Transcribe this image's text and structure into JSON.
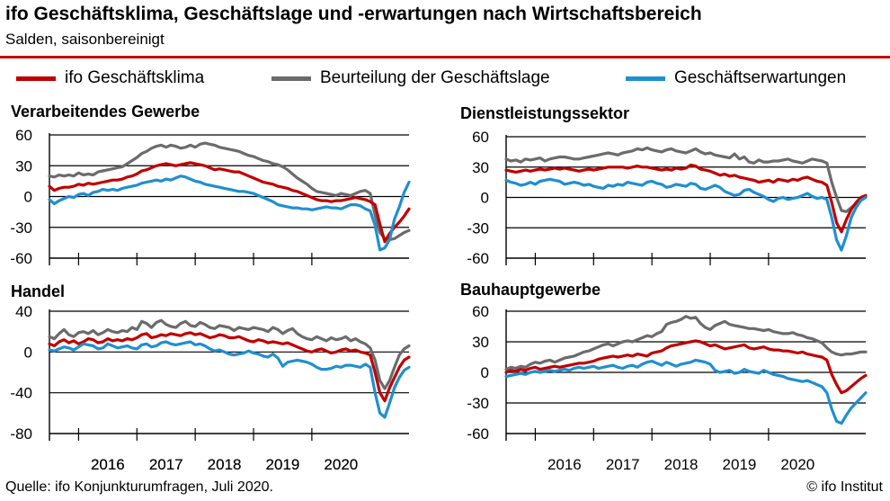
{
  "header": {
    "title": "ifo Geschäftsklima, Geschäftslage und -erwartungen nach Wirtschaftsbereich",
    "subtitle": "Salden, saisonbereinigt"
  },
  "legend": [
    {
      "label": "ifo Geschäftsklima",
      "color": "#c00000"
    },
    {
      "label": "Beurteilung der Geschäftslage",
      "color": "#6b6b6b"
    },
    {
      "label": "Geschäftserwartungen",
      "color": "#1f8fd0"
    }
  ],
  "footer": {
    "source": "Quelle:  ifo Konjunkturumfragen,  Juli 2020.",
    "copyright": "© ifo Institut"
  },
  "chart_data": [
    {
      "type": "line",
      "title": "Verarbeitendes Gewerbe",
      "ylim": [
        -60,
        60
      ],
      "yticks": [
        "60",
        "30",
        "0",
        "-30",
        "-60"
      ],
      "xtick_labels": [
        "2016",
        "2017",
        "2018",
        "2019",
        "2020"
      ],
      "x_start": "2015-07",
      "x_end": "2020-07",
      "series": [
        {
          "name": "ifo Geschäftsklima",
          "color": "#c00000",
          "values": [
            10,
            6,
            8,
            9,
            9,
            10,
            12,
            11,
            13,
            12,
            13,
            14,
            15,
            16,
            16,
            17,
            19,
            20,
            22,
            25,
            26,
            28,
            30,
            31,
            32,
            31,
            30,
            31,
            32,
            33,
            32,
            31,
            30,
            28,
            26,
            27,
            26,
            25,
            24,
            24,
            22,
            20,
            18,
            16,
            14,
            13,
            12,
            10,
            9,
            8,
            6,
            5,
            3,
            1,
            -1,
            -3,
            -4,
            -4,
            -5,
            -4,
            -4,
            -3,
            -2,
            -1,
            -2,
            -3,
            -5,
            -8,
            -27,
            -44,
            -36,
            -30,
            -25,
            -19,
            -12
          ]
        },
        {
          "name": "Beurteilung der Geschäftslage",
          "color": "#6b6b6b",
          "values": [
            20,
            19,
            21,
            20,
            21,
            20,
            23,
            21,
            22,
            21,
            24,
            25,
            26,
            27,
            28,
            29,
            32,
            35,
            38,
            42,
            44,
            47,
            49,
            50,
            48,
            50,
            49,
            47,
            48,
            50,
            48,
            51,
            52,
            51,
            50,
            48,
            47,
            46,
            45,
            44,
            42,
            40,
            39,
            37,
            35,
            34,
            32,
            31,
            29,
            26,
            22,
            18,
            15,
            12,
            8,
            5,
            4,
            3,
            2,
            1,
            3,
            2,
            1,
            3,
            5,
            6,
            3,
            -18,
            -35,
            -41,
            -42,
            -41,
            -38,
            -35,
            -33
          ]
        },
        {
          "name": "Geschäftserwartungen",
          "color": "#1f8fd0",
          "values": [
            -3,
            -7,
            -4,
            -2,
            0,
            -1,
            2,
            3,
            1,
            4,
            5,
            7,
            6,
            7,
            6,
            8,
            9,
            10,
            11,
            13,
            14,
            15,
            16,
            15,
            17,
            16,
            18,
            20,
            19,
            17,
            15,
            14,
            12,
            11,
            10,
            9,
            8,
            7,
            6,
            5,
            5,
            4,
            3,
            1,
            -1,
            -3,
            -5,
            -8,
            -9,
            -10,
            -11,
            -11,
            -12,
            -12,
            -13,
            -12,
            -11,
            -10,
            -11,
            -11,
            -12,
            -10,
            -8,
            -8,
            -9,
            -12,
            -14,
            -28,
            -52,
            -50,
            -42,
            -22,
            -10,
            4,
            14
          ]
        }
      ]
    },
    {
      "type": "line",
      "title": "Dienstleistungssektor",
      "ylim": [
        -60,
        60
      ],
      "yticks": [
        "60",
        "30",
        "0",
        "-30",
        "-60"
      ],
      "xtick_labels": [
        "2016",
        "2017",
        "2018",
        "2019",
        "2020"
      ],
      "x_start": "2015-07",
      "x_end": "2020-07",
      "series": [
        {
          "name": "ifo Geschäftsklima",
          "color": "#c00000",
          "values": [
            27,
            26,
            25,
            26,
            27,
            26,
            27,
            28,
            27,
            28,
            29,
            28,
            29,
            28,
            27,
            26,
            27,
            28,
            27,
            28,
            29,
            30,
            30,
            30,
            30,
            29,
            30,
            31,
            30,
            30,
            29,
            28,
            27,
            28,
            27,
            29,
            28,
            29,
            32,
            31,
            28,
            27,
            26,
            24,
            22,
            23,
            21,
            22,
            20,
            19,
            18,
            17,
            15,
            16,
            17,
            15,
            18,
            17,
            16,
            18,
            17,
            19,
            20,
            18,
            16,
            15,
            12,
            -5,
            -25,
            -34,
            -22,
            -12,
            -5,
            0,
            2
          ]
        },
        {
          "name": "Beurteilung der Geschäftslage",
          "color": "#6b6b6b",
          "values": [
            38,
            36,
            37,
            35,
            38,
            37,
            38,
            39,
            36,
            38,
            39,
            40,
            40,
            39,
            38,
            38,
            39,
            40,
            41,
            42,
            43,
            44,
            43,
            42,
            44,
            45,
            46,
            48,
            47,
            49,
            47,
            46,
            45,
            47,
            48,
            46,
            45,
            44,
            46,
            48,
            45,
            43,
            44,
            42,
            41,
            40,
            39,
            43,
            38,
            40,
            35,
            34,
            37,
            35,
            35,
            36,
            36,
            37,
            38,
            36,
            35,
            34,
            36,
            38,
            37,
            36,
            34,
            15,
            0,
            -13,
            -14,
            -10,
            -6,
            -2,
            1
          ]
        },
        {
          "name": "Geschäftserwartungen",
          "color": "#1f8fd0",
          "values": [
            17,
            15,
            14,
            12,
            13,
            15,
            13,
            16,
            17,
            18,
            17,
            16,
            13,
            14,
            15,
            14,
            12,
            13,
            11,
            10,
            9,
            12,
            11,
            13,
            12,
            15,
            14,
            13,
            12,
            15,
            16,
            14,
            13,
            10,
            11,
            13,
            12,
            11,
            14,
            13,
            9,
            8,
            10,
            12,
            10,
            6,
            4,
            2,
            3,
            7,
            8,
            5,
            3,
            1,
            -2,
            -4,
            -1,
            0,
            -2,
            -1,
            0,
            2,
            4,
            1,
            -1,
            0,
            -2,
            -20,
            -42,
            -52,
            -38,
            -20,
            -10,
            -3,
            0
          ]
        }
      ]
    },
    {
      "type": "line",
      "title": "Handel",
      "ylim": [
        -80,
        40
      ],
      "yticks": [
        "40",
        "0",
        "-40",
        "-80"
      ],
      "xtick_labels": [
        "2016",
        "2017",
        "2018",
        "2019",
        "2020"
      ],
      "x_start": "2015-07",
      "x_end": "2020-07",
      "series": [
        {
          "name": "ifo Geschäftsklima",
          "color": "#c00000",
          "values": [
            8,
            6,
            10,
            12,
            9,
            11,
            8,
            10,
            13,
            12,
            9,
            10,
            13,
            11,
            12,
            11,
            13,
            12,
            14,
            17,
            18,
            14,
            15,
            17,
            16,
            18,
            17,
            16,
            18,
            19,
            17,
            18,
            16,
            14,
            15,
            17,
            16,
            14,
            14,
            15,
            13,
            11,
            10,
            12,
            11,
            9,
            10,
            9,
            8,
            9,
            7,
            5,
            3,
            1,
            0,
            2,
            3,
            1,
            -1,
            0,
            2,
            3,
            1,
            2,
            0,
            -1,
            -3,
            -20,
            -40,
            -48,
            -35,
            -25,
            -15,
            -8,
            -5
          ]
        },
        {
          "name": "Beurteilung der Geschäftslage",
          "color": "#6b6b6b",
          "values": [
            15,
            13,
            18,
            22,
            17,
            15,
            19,
            20,
            18,
            21,
            17,
            19,
            22,
            20,
            19,
            21,
            20,
            24,
            22,
            30,
            28,
            24,
            29,
            31,
            27,
            25,
            24,
            28,
            30,
            26,
            25,
            29,
            27,
            24,
            23,
            26,
            25,
            24,
            21,
            24,
            23,
            22,
            24,
            23,
            22,
            20,
            24,
            22,
            18,
            21,
            23,
            18,
            15,
            13,
            12,
            15,
            13,
            11,
            14,
            12,
            13,
            15,
            11,
            13,
            10,
            8,
            4,
            -8,
            -28,
            -36,
            -28,
            -15,
            -3,
            3,
            6
          ]
        },
        {
          "name": "Geschäftserwartungen",
          "color": "#1f8fd0",
          "values": [
            2,
            1,
            3,
            5,
            4,
            2,
            5,
            8,
            7,
            6,
            3,
            4,
            8,
            6,
            4,
            5,
            6,
            4,
            3,
            7,
            8,
            5,
            6,
            9,
            10,
            8,
            7,
            8,
            9,
            10,
            7,
            8,
            6,
            3,
            1,
            2,
            0,
            -2,
            -3,
            -2,
            -1,
            1,
            -1,
            -2,
            -4,
            -5,
            -2,
            -6,
            -14,
            -10,
            -9,
            -8,
            -9,
            -10,
            -12,
            -15,
            -17,
            -17,
            -16,
            -14,
            -15,
            -13,
            -13,
            -14,
            -15,
            -12,
            -15,
            -40,
            -60,
            -64,
            -50,
            -35,
            -25,
            -18,
            -15
          ]
        }
      ]
    },
    {
      "type": "line",
      "title": "Bauhauptgewerbe",
      "ylim": [
        -60,
        60
      ],
      "yticks": [
        "60",
        "30",
        "0",
        "-30",
        "-60"
      ],
      "xtick_labels": [
        "2016",
        "2017",
        "2018",
        "2019",
        "2020"
      ],
      "x_start": "2015-07",
      "x_end": "2020-07",
      "series": [
        {
          "name": "ifo Geschäftsklima",
          "color": "#c00000",
          "values": [
            0,
            2,
            1,
            3,
            2,
            4,
            5,
            3,
            4,
            5,
            6,
            5,
            6,
            7,
            8,
            9,
            9,
            10,
            11,
            13,
            14,
            15,
            16,
            15,
            16,
            17,
            16,
            18,
            17,
            16,
            19,
            20,
            21,
            24,
            26,
            27,
            28,
            29,
            30,
            31,
            30,
            28,
            26,
            27,
            25,
            23,
            24,
            25,
            26,
            27,
            24,
            23,
            24,
            25,
            23,
            22,
            22,
            21,
            21,
            20,
            19,
            20,
            18,
            17,
            16,
            15,
            12,
            -2,
            -12,
            -20,
            -18,
            -14,
            -10,
            -6,
            -3
          ]
        },
        {
          "name": "Beurteilung der Geschäftslage",
          "color": "#6b6b6b",
          "values": [
            3,
            5,
            4,
            6,
            5,
            8,
            10,
            9,
            11,
            12,
            10,
            12,
            14,
            15,
            16,
            18,
            20,
            21,
            23,
            25,
            27,
            28,
            26,
            28,
            30,
            31,
            30,
            32,
            34,
            36,
            35,
            38,
            40,
            47,
            49,
            50,
            52,
            55,
            53,
            54,
            48,
            44,
            42,
            46,
            48,
            50,
            47,
            46,
            45,
            44,
            43,
            43,
            42,
            41,
            42,
            40,
            39,
            38,
            38,
            39,
            37,
            36,
            34,
            33,
            31,
            29,
            24,
            20,
            18,
            17,
            18,
            18,
            19,
            20,
            20
          ]
        },
        {
          "name": "Geschäftserwartungen",
          "color": "#1f8fd0",
          "values": [
            -4,
            -3,
            -2,
            -1,
            -2,
            0,
            1,
            0,
            1,
            2,
            1,
            2,
            3,
            2,
            4,
            5,
            4,
            5,
            6,
            4,
            5,
            6,
            7,
            5,
            4,
            6,
            7,
            5,
            8,
            10,
            11,
            9,
            7,
            10,
            8,
            6,
            8,
            9,
            10,
            12,
            11,
            10,
            8,
            2,
            0,
            1,
            2,
            -1,
            0,
            3,
            1,
            0,
            -1,
            2,
            0,
            -2,
            -3,
            -4,
            -6,
            -7,
            -8,
            -9,
            -8,
            -10,
            -12,
            -14,
            -20,
            -36,
            -48,
            -50,
            -42,
            -35,
            -30,
            -25,
            -20
          ]
        }
      ]
    }
  ]
}
